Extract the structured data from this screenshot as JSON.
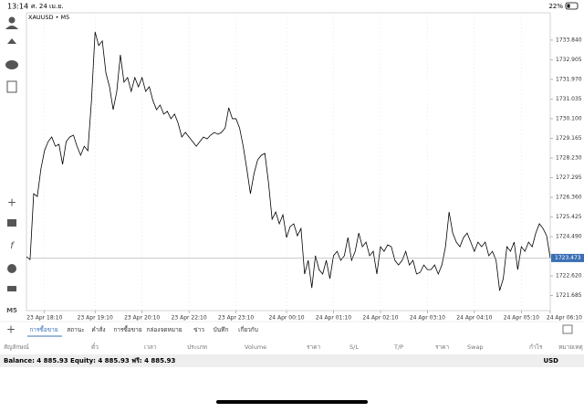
{
  "status_bar": {
    "time": "13:14",
    "date": "ศ. 24 เม.ย.",
    "battery": "22%"
  },
  "chart_data": {
    "type": "line",
    "title": "XAUUSD • M5",
    "color": "#000000",
    "grid": true,
    "x": [
      0,
      1,
      2,
      3,
      4,
      5,
      6,
      7,
      8,
      9,
      10,
      11,
      12,
      13,
      14,
      15,
      16,
      17,
      18,
      19,
      20,
      21,
      22,
      23,
      24,
      25,
      26,
      27,
      28,
      29,
      30,
      31,
      32,
      33,
      34,
      35,
      36,
      37,
      38,
      39,
      40,
      41,
      42,
      43,
      44,
      45,
      46,
      47,
      48,
      49,
      50,
      51,
      52,
      53,
      54,
      55,
      56,
      57,
      58,
      59,
      60,
      61,
      62,
      63,
      64,
      65,
      66,
      67,
      68,
      69,
      70,
      71,
      72,
      73,
      74,
      75,
      76,
      77,
      78,
      79,
      80,
      81,
      82,
      83,
      84,
      85,
      86,
      87,
      88,
      89,
      90,
      91,
      92,
      93,
      94,
      95,
      96,
      97,
      98,
      99,
      100,
      101,
      102,
      103,
      104,
      105,
      106,
      107,
      108,
      109,
      110,
      111,
      112,
      113,
      114,
      115,
      116,
      117,
      118,
      119,
      120,
      121,
      122,
      123,
      124,
      125,
      126,
      127,
      128,
      129,
      130,
      131,
      132,
      133,
      134,
      135,
      136,
      137,
      138,
      139,
      140,
      141,
      142,
      143,
      144,
      145
    ],
    "values": [
      1723.53,
      1723.4,
      1726.53,
      1726.4,
      1727.71,
      1728.58,
      1729.01,
      1729.23,
      1728.79,
      1728.88,
      1727.93,
      1729.01,
      1729.23,
      1729.32,
      1728.79,
      1728.36,
      1728.79,
      1728.58,
      1730.97,
      1734.23,
      1733.58,
      1733.8,
      1732.27,
      1731.62,
      1730.53,
      1731.4,
      1733.14,
      1731.84,
      1732.06,
      1731.4,
      1732.06,
      1731.62,
      1732.06,
      1731.4,
      1731.62,
      1730.97,
      1730.53,
      1730.75,
      1730.32,
      1730.45,
      1730.1,
      1730.32,
      1729.88,
      1729.23,
      1729.45,
      1729.23,
      1729.01,
      1728.79,
      1729.01,
      1729.23,
      1729.14,
      1729.32,
      1729.45,
      1729.36,
      1729.45,
      1729.66,
      1730.62,
      1730.1,
      1730.1,
      1729.66,
      1728.79,
      1727.71,
      1726.53,
      1727.49,
      1728.14,
      1728.36,
      1728.45,
      1727.06,
      1725.32,
      1725.66,
      1725.1,
      1725.53,
      1724.45,
      1724.97,
      1725.1,
      1724.53,
      1724.88,
      1722.71,
      1723.36,
      1722.05,
      1723.58,
      1722.92,
      1722.71,
      1723.36,
      1722.49,
      1723.58,
      1723.79,
      1723.36,
      1723.58,
      1724.45,
      1723.36,
      1723.79,
      1724.66,
      1724.01,
      1724.23,
      1723.58,
      1723.79,
      1722.71,
      1724.01,
      1723.79,
      1724.1,
      1724.01,
      1723.36,
      1723.14,
      1723.36,
      1723.79,
      1723.14,
      1723.36,
      1722.71,
      1722.79,
      1723.14,
      1722.92,
      1722.92,
      1723.14,
      1722.71,
      1723.14,
      1724.01,
      1725.66,
      1724.66,
      1724.23,
      1724.01,
      1724.45,
      1724.66,
      1724.23,
      1723.79,
      1724.23,
      1724.01,
      1724.23,
      1723.58,
      1723.79,
      1723.36,
      1721.92,
      1722.49,
      1724.01,
      1723.79,
      1724.23,
      1722.92,
      1724.01,
      1723.79,
      1724.23,
      1724.01,
      1724.66,
      1725.1,
      1724.88,
      1724.53,
      1723.47
    ],
    "xlim": [
      0,
      145
    ],
    "xticks": [
      {
        "value": 5,
        "label": "23 Apr 18:10"
      },
      {
        "value": 19,
        "label": "23 Apr 19:10"
      },
      {
        "value": 32,
        "label": "23 Apr 20:10"
      },
      {
        "value": 45,
        "label": "23 Apr 22:10"
      },
      {
        "value": 58,
        "label": "23 Apr 23:10"
      },
      {
        "value": 72,
        "label": "24 Apr 00:10"
      },
      {
        "value": 85,
        "label": "24 Apr 01:10"
      },
      {
        "value": 98,
        "label": "24 Apr 02:10"
      },
      {
        "value": 111,
        "label": "24 Apr 03:10"
      },
      {
        "value": 124,
        "label": "24 Apr 04:10"
      },
      {
        "value": 137,
        "label": "24 Apr 05:10"
      },
      {
        "value": 151,
        "label": "24 Apr 06:10"
      }
    ],
    "ylim": [
      1720.97,
      1735.14
    ],
    "yticks": [
      {
        "value": 1733.84,
        "label": "1733.840"
      },
      {
        "value": 1732.905,
        "label": "1732.905"
      },
      {
        "value": 1731.97,
        "label": "1731.970"
      },
      {
        "value": 1731.035,
        "label": "1731.035"
      },
      {
        "value": 1730.1,
        "label": "1730.100"
      },
      {
        "value": 1729.165,
        "label": "1729.165"
      },
      {
        "value": 1728.23,
        "label": "1728.230"
      },
      {
        "value": 1727.295,
        "label": "1727.295"
      },
      {
        "value": 1726.36,
        "label": "1726.360"
      },
      {
        "value": 1725.425,
        "label": "1725.425"
      },
      {
        "value": 1724.49,
        "label": "1724.490"
      },
      {
        "value": 1722.62,
        "label": "1722.620"
      },
      {
        "value": 1721.685,
        "label": "1721.685"
      }
    ],
    "current_price": 1723.473,
    "current_price_color": "#3a6fb5"
  },
  "side_toolbar": {
    "timeframe": "M5"
  },
  "tabs": [
    "การซื้อขาย",
    "สถานะ",
    "คำสั่ง",
    "การซื้อขาย",
    "กล่องจดหมาย",
    "ข่าว",
    "บันทึก",
    "เกี่ยวกับ"
  ],
  "table": {
    "columns": [
      "สัญลักษณ์",
      "ตั๋ว",
      "เวลา",
      "ประเภท",
      "Volume",
      "ราคา",
      "S/L",
      "T/P",
      "ราคา",
      "Swap",
      "กำไร",
      "หมายเหตุ"
    ]
  },
  "footer": {
    "balance": "Balance: 4 885.93 Equity: 4 885.93 ฟรี: 4 885.93",
    "currency": "USD"
  }
}
